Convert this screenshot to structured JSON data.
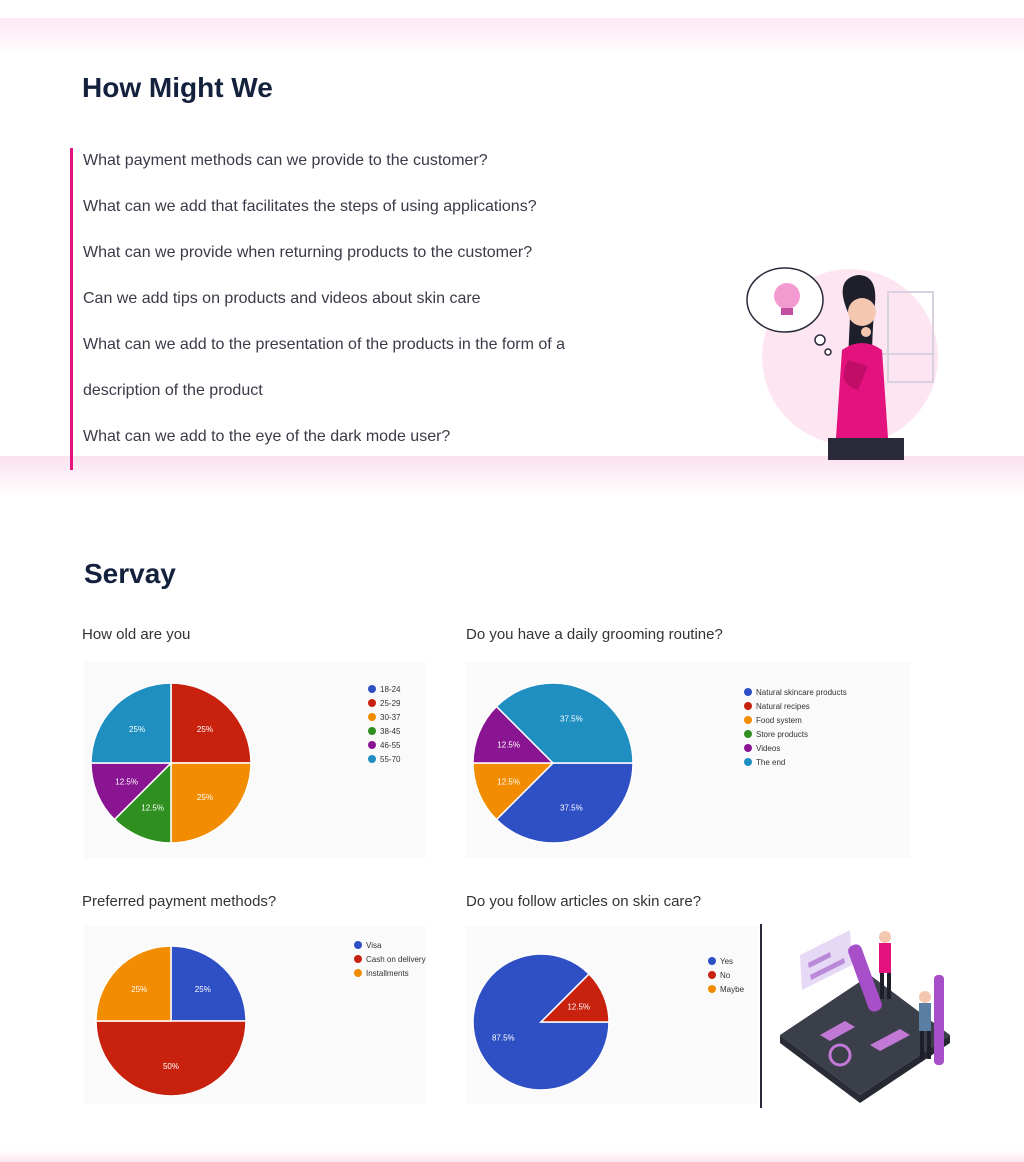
{
  "how_might_we": {
    "title": "How Might We",
    "questions": [
      "What payment methods can we provide to the customer?",
      "What can we add that facilitates the steps of using applications?",
      "What can we provide when returning products to the customer?",
      "Can we add tips on products and videos about skin care",
      "What can we add to the presentation of the products in the form of a",
      "description of the product",
      "What can we add to the eye of the dark mode user?"
    ]
  },
  "survey": {
    "title": "Servay"
  },
  "colors": {
    "accent": "#e3127e",
    "blue": "#2f4fc4",
    "red": "#c8220f",
    "orange": "#f28c00",
    "green": "#2f8f1f",
    "purple": "#8a1592",
    "teal": "#1f8fc1"
  },
  "illustrations": {
    "woman": "woman-thinking-lightbulb",
    "people": "people-analyzing-data-board"
  },
  "chart_data": [
    {
      "type": "pie",
      "title": "How old are you",
      "legend_position": "right",
      "slices": [
        {
          "label": "18-24",
          "value": 0,
          "color": "#2f4fc4",
          "pct": ""
        },
        {
          "label": "25-29",
          "value": 25,
          "color": "#c8220f",
          "pct": "25%"
        },
        {
          "label": "30-37",
          "value": 25,
          "color": "#f28c00",
          "pct": "25%"
        },
        {
          "label": "38-45",
          "value": 12.5,
          "color": "#2f8f1f",
          "pct": "12.5%"
        },
        {
          "label": "46-55",
          "value": 12.5,
          "color": "#8a1592",
          "pct": "12.5%"
        },
        {
          "label": "55-70",
          "value": 25,
          "color": "#1f8fc1",
          "pct": "25%"
        }
      ]
    },
    {
      "type": "pie",
      "title": "Do you have a daily grooming routine?",
      "legend_position": "right",
      "slices": [
        {
          "label": "Natural skincare products",
          "value": 37.5,
          "color": "#2f4fc4",
          "pct": "37.5%"
        },
        {
          "label": "Natural recipes",
          "value": 0,
          "color": "#c8220f",
          "pct": ""
        },
        {
          "label": "Food system",
          "value": 12.5,
          "color": "#f28c00",
          "pct": "12.5%"
        },
        {
          "label": "Store products",
          "value": 0,
          "color": "#2f8f1f",
          "pct": ""
        },
        {
          "label": "Videos",
          "value": 12.5,
          "color": "#8a1592",
          "pct": "12.5%"
        },
        {
          "label": "The end",
          "value": 37.5,
          "color": "#1f8fc1",
          "pct": "37.5%"
        }
      ]
    },
    {
      "type": "pie",
      "title": "Preferred payment methods?",
      "legend_position": "right",
      "slices": [
        {
          "label": "Visa",
          "value": 25,
          "color": "#2f4fc4",
          "pct": "25%"
        },
        {
          "label": "Cash on delivery",
          "value": 50,
          "color": "#c8220f",
          "pct": "50%"
        },
        {
          "label": "Installments",
          "value": 25,
          "color": "#f28c00",
          "pct": "25%"
        }
      ]
    },
    {
      "type": "pie",
      "title": "Do you follow articles on skin care?",
      "legend_position": "right",
      "slices": [
        {
          "label": "Yes",
          "value": 87.5,
          "color": "#2f4fc4",
          "pct": "87.5%"
        },
        {
          "label": "No",
          "value": 12.5,
          "color": "#c8220f",
          "pct": "12.5%"
        },
        {
          "label": "Maybe",
          "value": 0,
          "color": "#f28c00",
          "pct": ""
        }
      ]
    }
  ]
}
